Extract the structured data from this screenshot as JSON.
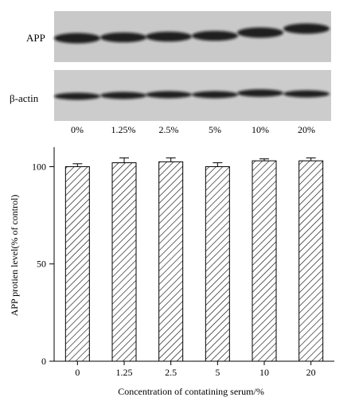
{
  "blot": {
    "rows": [
      {
        "label": "APP",
        "band_thickness": [
          1.0,
          0.95,
          0.95,
          0.95,
          1.0,
          1.0
        ]
      },
      {
        "label": "β-actin",
        "band_thickness": [
          0.9,
          0.9,
          0.9,
          0.9,
          0.95,
          0.9
        ]
      }
    ],
    "lanes": [
      "0%",
      "1.25%",
      "2.5%",
      "5%",
      "10%",
      "20%"
    ]
  },
  "chart_data": {
    "type": "bar",
    "categories": [
      "0",
      "1.25",
      "2.5",
      "5",
      "10",
      "20"
    ],
    "values": [
      100,
      102,
      102.5,
      100,
      103,
      103
    ],
    "errors": [
      1.5,
      2.5,
      2,
      2,
      1,
      1.5
    ],
    "title": "",
    "xlabel": "Concentration of contatining serum/%",
    "ylabel": "APP protien level(% of control)",
    "ylim": [
      0,
      110
    ],
    "yticks": [
      0,
      50,
      100
    ],
    "fill": "diagonal-hatch",
    "grid": false,
    "legend": "none"
  }
}
